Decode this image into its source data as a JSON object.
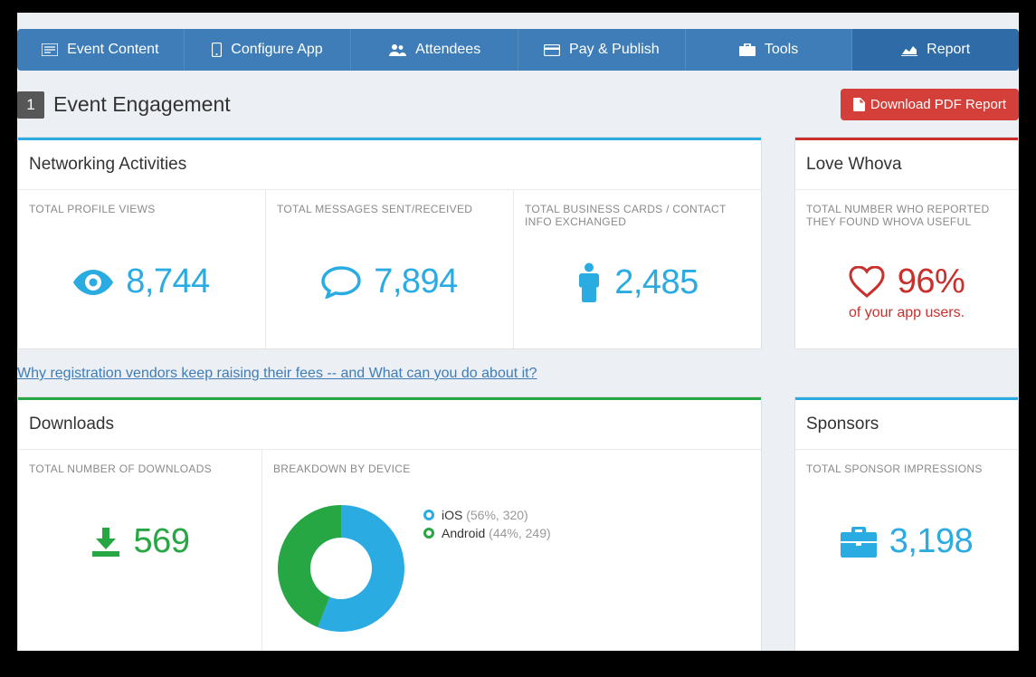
{
  "colors": {
    "tab_bg": "#3e7db7",
    "tab_active_bg": "#2f6ca7",
    "danger": "#d43f3a",
    "cyan": "#2aace3",
    "green": "#27a744",
    "red": "#c9302c",
    "muted": "#8a8a8a"
  },
  "tabs": [
    {
      "icon": "content",
      "label": "Event Content"
    },
    {
      "icon": "phone",
      "label": "Configure App"
    },
    {
      "icon": "users",
      "label": "Attendees"
    },
    {
      "icon": "card",
      "label": "Pay & Publish"
    },
    {
      "icon": "toolbox",
      "label": "Tools"
    },
    {
      "icon": "chart",
      "label": "Report"
    }
  ],
  "active_tab_index": 5,
  "header": {
    "step": "1",
    "title": "Event Engagement",
    "pdf_button": "Download PDF Report"
  },
  "networking": {
    "title": "Networking Activities",
    "accent": "#2aace3",
    "stats": [
      {
        "label": "TOTAL PROFILE VIEWS",
        "value": "8,744",
        "icon": "eye"
      },
      {
        "label": "TOTAL MESSAGES SENT/RECEIVED",
        "value": "7,894",
        "icon": "bubble"
      },
      {
        "label": "TOTAL BUSINESS CARDS / CONTACT INFO EXCHANGED",
        "value": "2,485",
        "icon": "person"
      }
    ]
  },
  "love": {
    "title": "Love Whova",
    "accent": "#c9302c",
    "label": "TOTAL NUMBER WHO REPORTED THEY FOUND WHOVA USEFUL",
    "value": "96%",
    "subtext": "of your app users."
  },
  "link": {
    "text": "Why registration vendors keep raising their fees -- and What can you do about it?"
  },
  "downloads": {
    "title": "Downloads",
    "accent": "#27a744",
    "total_label": "TOTAL NUMBER OF DOWNLOADS",
    "total_value": "569",
    "breakdown_label": "BREAKDOWN BY DEVICE",
    "chart": {
      "type": "donut",
      "inner_radius": 34,
      "outer_radius": 70,
      "background": "#ffffff",
      "slices": [
        {
          "name": "iOS",
          "pct": 56,
          "count": 320,
          "color": "#2aace3"
        },
        {
          "name": "Android",
          "pct": 44,
          "count": 249,
          "color": "#27a744"
        }
      ]
    }
  },
  "sponsors": {
    "title": "Sponsors",
    "accent": "#2aace3",
    "label": "TOTAL SPONSOR IMPRESSIONS",
    "value": "3,198"
  }
}
